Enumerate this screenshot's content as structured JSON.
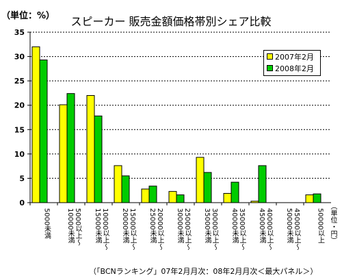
{
  "unit_label": "（単位：%）",
  "source_note": "（「BCNランキング」07年2月月次：08年2月月次＜最大パネル＞）",
  "y_unit_vertical": "（単位・円）",
  "chart_data": {
    "type": "bar",
    "title": "スピーカー 販売金額価格帯別シェア比較",
    "xlabel": "",
    "ylabel": "",
    "ylim": [
      0,
      35
    ],
    "yticks": [
      0,
      5,
      10,
      15,
      20,
      25,
      30,
      35
    ],
    "grid": true,
    "legend_position": "top-right",
    "categories": [
      "5000未満",
      "5000以上～ 10000未満",
      "10000以上～ 15000未満",
      "15000以上～ 20000未満",
      "20000以上～ 25000未満",
      "25000以上～ 30000未満",
      "30000以上～ 35000未満",
      "35000以上～ 40000未満",
      "40000以上～ 45000未満",
      "45000以上～ 50000未満",
      "50000以上"
    ],
    "series": [
      {
        "name": "2007年2月",
        "color": "#ffff00",
        "values": [
          32.0,
          20.1,
          22.0,
          7.6,
          2.8,
          2.3,
          9.3,
          1.9,
          0.3,
          0.0,
          1.6
        ]
      },
      {
        "name": "2008年2月",
        "color": "#00cc00",
        "values": [
          29.3,
          22.4,
          17.8,
          5.5,
          3.4,
          1.6,
          6.2,
          4.2,
          7.6,
          0.0,
          1.8
        ]
      }
    ]
  }
}
